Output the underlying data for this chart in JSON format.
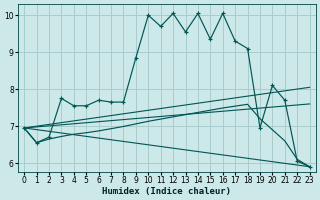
{
  "xlabel": "Humidex (Indice chaleur)",
  "bg_color": "#cce8e8",
  "grid_color": "#aacccc",
  "line_color": "#005555",
  "xlim": [
    -0.5,
    23.5
  ],
  "ylim": [
    5.75,
    10.3
  ],
  "xticks": [
    0,
    1,
    2,
    3,
    4,
    5,
    6,
    7,
    8,
    9,
    10,
    11,
    12,
    13,
    14,
    15,
    16,
    17,
    18,
    19,
    20,
    21,
    22,
    23
  ],
  "yticks": [
    6,
    7,
    8,
    9,
    10
  ],
  "main_x": [
    0,
    1,
    2,
    3,
    4,
    5,
    6,
    7,
    8,
    9,
    10,
    11,
    12,
    13,
    14,
    15,
    16,
    17,
    18,
    19,
    20,
    21,
    22,
    23
  ],
  "main_y": [
    6.95,
    6.55,
    6.7,
    7.75,
    7.55,
    7.55,
    7.7,
    7.65,
    7.65,
    8.85,
    10.0,
    9.7,
    10.05,
    9.55,
    10.05,
    9.35,
    10.05,
    9.3,
    9.1,
    6.95,
    8.1,
    7.7,
    6.05,
    5.9
  ],
  "smooth_x": [
    0,
    1,
    2,
    3,
    4,
    5,
    6,
    7,
    8,
    9,
    10,
    11,
    12,
    13,
    14,
    15,
    16,
    17,
    18,
    19,
    20,
    21,
    22,
    23
  ],
  "smooth_y": [
    6.95,
    6.55,
    6.65,
    6.72,
    6.78,
    6.82,
    6.87,
    6.93,
    6.99,
    7.06,
    7.13,
    7.19,
    7.25,
    7.31,
    7.37,
    7.43,
    7.49,
    7.54,
    7.59,
    7.2,
    6.9,
    6.6,
    6.1,
    5.9
  ],
  "line_down": [
    [
      0,
      23
    ],
    [
      6.95,
      5.9
    ]
  ],
  "line_mid": [
    [
      0,
      23
    ],
    [
      6.95,
      7.6
    ]
  ],
  "line_up": [
    [
      0,
      23
    ],
    [
      6.95,
      8.05
    ]
  ]
}
